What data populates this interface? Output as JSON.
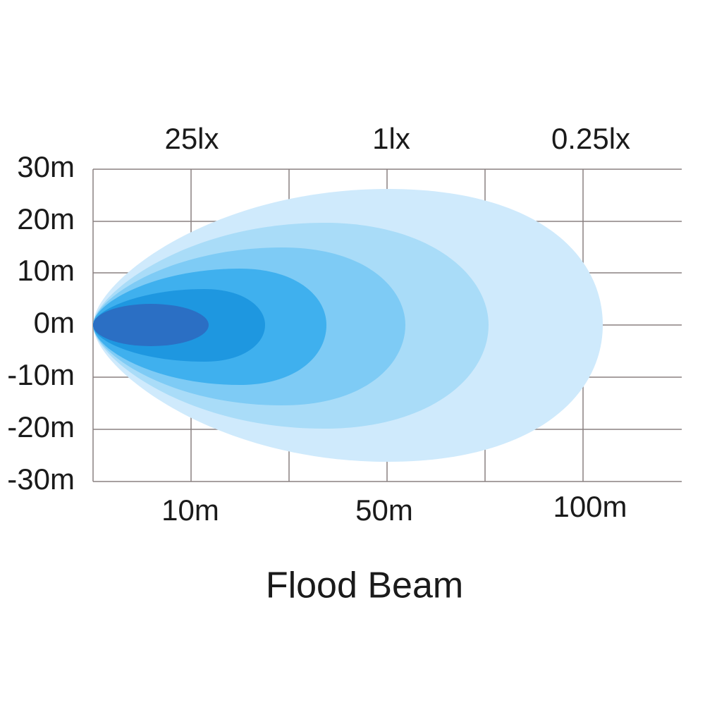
{
  "top_labels": [
    "25lx",
    "1lx",
    "0.25lx"
  ],
  "y_labels": [
    "30m",
    "20m",
    "10m",
    "0m",
    "-10m",
    "-20m",
    "-30m"
  ],
  "x_labels": [
    "10m",
    "50m",
    "100m"
  ],
  "caption": "Flood Beam"
}
